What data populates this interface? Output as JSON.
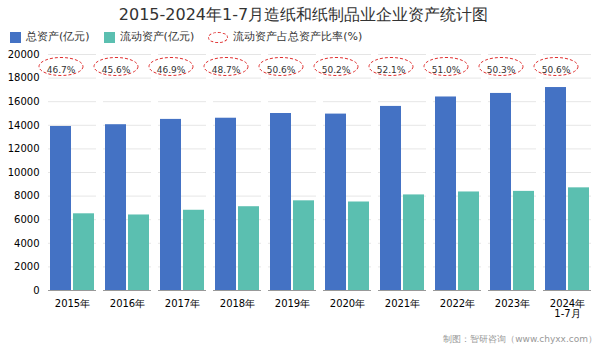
{
  "chart_data": {
    "type": "bar",
    "title": "2015-2024年1-7月造纸和纸制品业企业资产统计图",
    "categories": [
      "2015年",
      "2016年",
      "2017年",
      "2018年",
      "2019年",
      "2020年",
      "2021年",
      "2022年",
      "2023年",
      "2024年\n1-7月"
    ],
    "series": [
      {
        "name": "总资产(亿元)",
        "type": "bar",
        "color": "#4472c4",
        "values": [
          13900,
          14050,
          14500,
          14600,
          15000,
          14950,
          15600,
          16400,
          16700,
          17200
        ]
      },
      {
        "name": "流动资产(亿元)",
        "type": "bar",
        "color": "#5bbfb0",
        "values": [
          6500,
          6400,
          6800,
          7100,
          7600,
          7500,
          8100,
          8350,
          8400,
          8700
        ]
      },
      {
        "name": "流动资产占总资产比率(%)",
        "type": "label",
        "color": "#e03030",
        "values": [
          46.7,
          45.6,
          46.9,
          48.7,
          50.6,
          50.2,
          52.1,
          51.0,
          50.3,
          50.6
        ],
        "value_labels": [
          "46.7%",
          "45.6%",
          "46.9%",
          "48.7%",
          "50.6%",
          "50.2%",
          "52.1%",
          "51.0%",
          "50.3%",
          "50.6%"
        ]
      }
    ],
    "ylim": [
      0,
      20000
    ],
    "yticks": [
      0,
      2000,
      4000,
      6000,
      8000,
      10000,
      12000,
      14000,
      16000,
      18000,
      20000
    ],
    "grid": true,
    "legend": "upper left",
    "annotations": [
      "制图：智研咨询（www.chyxx.com）"
    ]
  }
}
